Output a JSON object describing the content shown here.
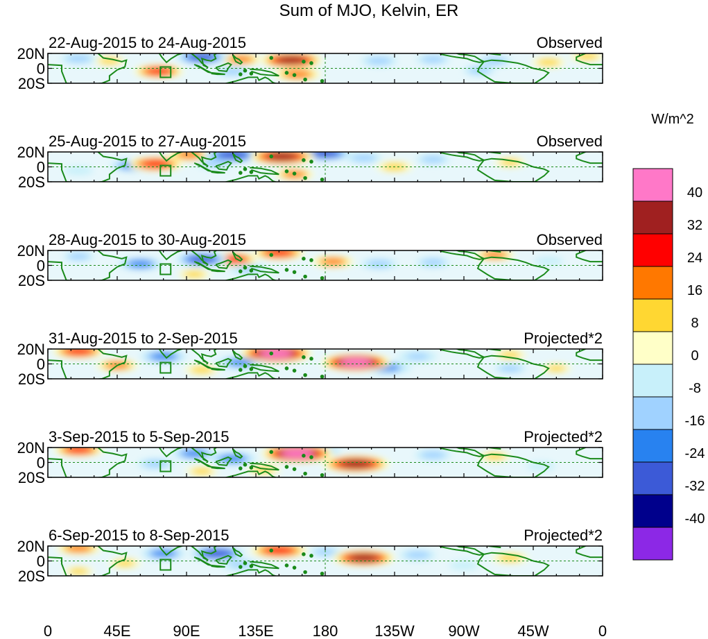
{
  "chart_data": {
    "type": "heatmap",
    "title": "Sum of MJO, Kelvin, ER",
    "units": "W/m^2",
    "x_ticks": [
      "0",
      "45E",
      "90E",
      "135E",
      "180",
      "135W",
      "90W",
      "45W",
      "0"
    ],
    "y_ticks": [
      "20N",
      "0",
      "20S"
    ],
    "colorbar": {
      "levels": [
        "40",
        "32",
        "24",
        "16",
        "8",
        "0",
        "-8",
        "-16",
        "-24",
        "-32",
        "-40"
      ],
      "colors": [
        "#ff78c8",
        "#a02020",
        "#ff0000",
        "#ff7800",
        "#ffd732",
        "#ffffc8",
        "#c8f0fa",
        "#a0d2ff",
        "#2882f0",
        "#3c5ad7",
        "#00008c",
        "#8c28e6"
      ]
    },
    "panels": [
      {
        "date": "22-Aug-2015 to 24-Aug-2015",
        "label": "Observed",
        "anomalies": [
          {
            "lon": 158,
            "lat": 11,
            "value": 34
          },
          {
            "lon": 125,
            "lat": 12,
            "value": 18
          },
          {
            "lon": 162,
            "lat": -8,
            "value": 22
          },
          {
            "lon": 72,
            "lat": -4,
            "value": 24
          },
          {
            "lon": 40,
            "lat": 10,
            "value": 10
          },
          {
            "lon": 325,
            "lat": 8,
            "value": 12
          },
          {
            "lon": 100,
            "lat": 15,
            "value": -26
          },
          {
            "lon": 20,
            "lat": 13,
            "value": -14
          },
          {
            "lon": 215,
            "lat": 10,
            "value": -14
          },
          {
            "lon": 250,
            "lat": 12,
            "value": -12
          },
          {
            "lon": 290,
            "lat": 10,
            "value": -12
          },
          {
            "lon": 120,
            "lat": -4,
            "value": -12
          },
          {
            "lon": 280,
            "lat": -3,
            "value": -10
          },
          {
            "lon": 350,
            "lat": 16,
            "value": 12
          }
        ]
      },
      {
        "date": "25-Aug-2015 to 27-Aug-2015",
        "label": "Observed",
        "anomalies": [
          {
            "lon": 152,
            "lat": 14,
            "value": 36
          },
          {
            "lon": 70,
            "lat": 4,
            "value": 28
          },
          {
            "lon": 92,
            "lat": 16,
            "value": 20
          },
          {
            "lon": 160,
            "lat": -10,
            "value": 16
          },
          {
            "lon": 120,
            "lat": 16,
            "value": -30
          },
          {
            "lon": 180,
            "lat": 18,
            "value": -26
          },
          {
            "lon": 55,
            "lat": 2,
            "value": -20
          },
          {
            "lon": 108,
            "lat": 5,
            "value": -14
          },
          {
            "lon": 205,
            "lat": 12,
            "value": -14
          },
          {
            "lon": 250,
            "lat": 10,
            "value": -12
          },
          {
            "lon": 225,
            "lat": 0,
            "value": 14
          },
          {
            "lon": 300,
            "lat": 6,
            "value": 10
          },
          {
            "lon": 20,
            "lat": -5,
            "value": -8
          }
        ]
      },
      {
        "date": "28-Aug-2015 to 30-Aug-2015",
        "label": "Observed",
        "anomalies": [
          {
            "lon": 150,
            "lat": 17,
            "value": 26
          },
          {
            "lon": 120,
            "lat": 8,
            "value": 24
          },
          {
            "lon": 185,
            "lat": 5,
            "value": 18
          },
          {
            "lon": 290,
            "lat": 14,
            "value": 16
          },
          {
            "lon": 100,
            "lat": 8,
            "value": -26
          },
          {
            "lon": 60,
            "lat": 2,
            "value": -20
          },
          {
            "lon": 130,
            "lat": -5,
            "value": -16
          },
          {
            "lon": 215,
            "lat": 2,
            "value": -14
          },
          {
            "lon": 250,
            "lat": 4,
            "value": -12
          },
          {
            "lon": 20,
            "lat": 12,
            "value": -10
          },
          {
            "lon": 95,
            "lat": -12,
            "value": 10
          },
          {
            "lon": 325,
            "lat": 6,
            "value": -8
          }
        ]
      },
      {
        "date": "31-Aug-2015 to 2-Sep-2015",
        "label": "Projected*2",
        "anomalies": [
          {
            "lon": 148,
            "lat": 14,
            "value": 42
          },
          {
            "lon": 200,
            "lat": 2,
            "value": 40
          },
          {
            "lon": 20,
            "lat": 17,
            "value": 26
          },
          {
            "lon": 125,
            "lat": 2,
            "value": -24
          },
          {
            "lon": 75,
            "lat": 10,
            "value": -22
          },
          {
            "lon": 220,
            "lat": -5,
            "value": -24
          },
          {
            "lon": 240,
            "lat": 10,
            "value": -16
          },
          {
            "lon": 100,
            "lat": -8,
            "value": 12
          },
          {
            "lon": 45,
            "lat": -2,
            "value": 18
          },
          {
            "lon": 300,
            "lat": 12,
            "value": 10
          },
          {
            "lon": 300,
            "lat": -6,
            "value": -10
          },
          {
            "lon": 330,
            "lat": -6,
            "value": 8
          }
        ]
      },
      {
        "date": "3-Sep-2015 to 5-Sep-2015",
        "label": "Projected*2",
        "anomalies": [
          {
            "lon": 162,
            "lat": 12,
            "value": 42
          },
          {
            "lon": 200,
            "lat": -2,
            "value": 38
          },
          {
            "lon": 20,
            "lat": 17,
            "value": 24
          },
          {
            "lon": 120,
            "lat": 5,
            "value": -22
          },
          {
            "lon": 95,
            "lat": 12,
            "value": -20
          },
          {
            "lon": 70,
            "lat": -2,
            "value": -14
          },
          {
            "lon": 250,
            "lat": 10,
            "value": -14
          },
          {
            "lon": 180,
            "lat": 15,
            "value": -10
          },
          {
            "lon": 140,
            "lat": -10,
            "value": 12
          },
          {
            "lon": 100,
            "lat": -12,
            "value": 10
          },
          {
            "lon": 290,
            "lat": 8,
            "value": 10
          },
          {
            "lon": 320,
            "lat": -5,
            "value": -8
          }
        ]
      },
      {
        "date": "6-Sep-2015 to 8-Sep-2015",
        "label": "Projected*2",
        "anomalies": [
          {
            "lon": 150,
            "lat": 14,
            "value": 30
          },
          {
            "lon": 205,
            "lat": 4,
            "value": 34
          },
          {
            "lon": 20,
            "lat": 17,
            "value": 20
          },
          {
            "lon": 110,
            "lat": 10,
            "value": -28
          },
          {
            "lon": 75,
            "lat": 10,
            "value": -20
          },
          {
            "lon": 125,
            "lat": -5,
            "value": -16
          },
          {
            "lon": 240,
            "lat": 8,
            "value": -14
          },
          {
            "lon": 180,
            "lat": 12,
            "value": -10
          },
          {
            "lon": 300,
            "lat": 4,
            "value": 14
          },
          {
            "lon": 50,
            "lat": -3,
            "value": 10
          },
          {
            "lon": 270,
            "lat": -6,
            "value": -8
          },
          {
            "lon": 20,
            "lat": -14,
            "value": 8
          }
        ]
      }
    ]
  }
}
